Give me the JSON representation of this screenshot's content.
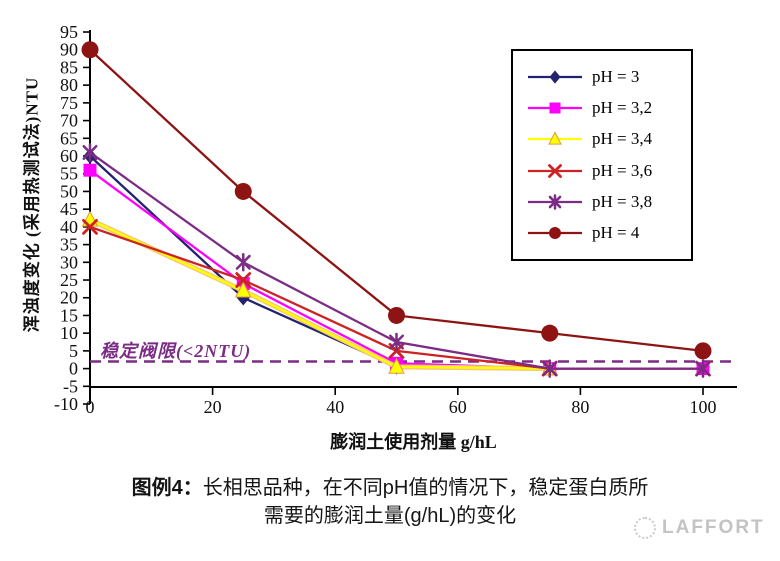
{
  "chart_data": {
    "type": "line",
    "title": "",
    "xlabel": "膨润土使用剂量 g/hL",
    "ylabel": "浑浊度变化 (采用热测试法)NTU",
    "xlim": [
      0,
      105
    ],
    "ylim": [
      -10,
      95
    ],
    "x_ticks": [
      0,
      20,
      40,
      60,
      80,
      100
    ],
    "y_tick_min": -10,
    "y_tick_max": 95,
    "y_tick_step": 5,
    "grid": "off",
    "legend_position": "top-right",
    "series": [
      {
        "name": "pH = 3",
        "color": "#22226E",
        "marker": "diamond",
        "x": [
          0,
          25,
          50,
          75
        ],
        "values": [
          60,
          20,
          0.5,
          0
        ]
      },
      {
        "name": "pH = 3,2",
        "color": "#FF00FF",
        "marker": "square",
        "x": [
          0,
          25,
          50,
          75,
          100
        ],
        "values": [
          56,
          24,
          1.5,
          0,
          0
        ]
      },
      {
        "name": "pH = 3,4",
        "color": "#FFFF00",
        "marker": "triangle",
        "x": [
          0,
          25,
          50,
          75
        ],
        "values": [
          42,
          22,
          0.5,
          0
        ]
      },
      {
        "name": "pH = 3,6",
        "color": "#CC2424",
        "marker": "x",
        "x": [
          0,
          25,
          50,
          75,
          100
        ],
        "values": [
          40,
          25,
          5,
          0,
          0
        ]
      },
      {
        "name": "pH = 3,8",
        "color": "#7B2C85",
        "marker": "star",
        "x": [
          0,
          25,
          50,
          75,
          100
        ],
        "values": [
          61,
          30,
          7.5,
          0,
          0
        ]
      },
      {
        "name": "pH = 4",
        "color": "#8E1414",
        "marker": "circle",
        "x": [
          0,
          25,
          50,
          75,
          100
        ],
        "values": [
          90,
          50,
          15,
          10,
          5
        ]
      }
    ],
    "threshold": {
      "value": 2,
      "label": "稳定阀限(<2NTU)",
      "color": "#7B2C85",
      "style": "dashed"
    }
  },
  "caption": {
    "prefix": "图例4：",
    "line1": "长相思品种，在不同pH值的情况下，稳定蛋白质所",
    "line2": "需要的膨润土量(g/hL)的变化"
  },
  "watermark": {
    "text": "LAFFORT"
  }
}
